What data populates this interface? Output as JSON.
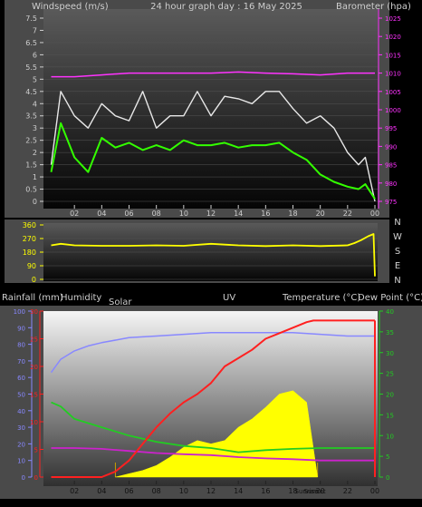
{
  "chart_data": [
    {
      "type": "line",
      "title": "24 hour graph day : 16 May 2025",
      "left_axis_label": "Windspeed (m/s)",
      "right_axis_label": "Barometer (hpa)",
      "x_ticks": [
        "02",
        "04",
        "06",
        "08",
        "10",
        "12",
        "14",
        "16",
        "18",
        "20",
        "22",
        "00"
      ],
      "left_ticks": [
        "0",
        "0.5",
        "1",
        "1.5",
        "2",
        "2.5",
        "3",
        "3.5",
        "4",
        "4.5",
        "5",
        "5.5",
        "6",
        "6.5",
        "7",
        "7.5"
      ],
      "right_ticks": [
        "975",
        "980",
        "985",
        "990",
        "995",
        "1000",
        "1005",
        "1010",
        "1015",
        "1020",
        "1025"
      ],
      "ylim_left": [
        0,
        7.5
      ],
      "ylim_right": [
        975,
        1025
      ],
      "colors": {
        "gust": "#e8e8e8",
        "wind": "#33ff00",
        "barometer": "#ff33ff"
      },
      "series": [
        {
          "key": "gust",
          "x": [
            0.3,
            1,
            2,
            3,
            4,
            5,
            6,
            7,
            8,
            9,
            10,
            11,
            12,
            13,
            14,
            15,
            16,
            17,
            18,
            19,
            20,
            21,
            22,
            22.8,
            23.3,
            24
          ],
          "y": [
            1.5,
            4.5,
            3.5,
            3.0,
            4.0,
            3.5,
            3.3,
            4.5,
            3.0,
            3.5,
            3.5,
            4.5,
            3.5,
            4.3,
            4.2,
            4.0,
            4.5,
            4.5,
            3.8,
            3.2,
            3.5,
            3.0,
            2.0,
            1.5,
            1.8,
            0.0
          ]
        },
        {
          "key": "wind",
          "x": [
            0.3,
            1,
            2,
            3,
            4,
            5,
            6,
            7,
            8,
            9,
            10,
            11,
            12,
            13,
            14,
            15,
            16,
            17,
            18,
            19,
            20,
            21,
            22,
            22.8,
            23.3,
            24
          ],
          "y": [
            1.2,
            3.2,
            1.8,
            1.2,
            2.6,
            2.2,
            2.4,
            2.1,
            2.3,
            2.1,
            2.5,
            2.3,
            2.3,
            2.4,
            2.2,
            2.3,
            2.3,
            2.4,
            2.0,
            1.7,
            1.1,
            0.8,
            0.6,
            0.5,
            0.7,
            0.1
          ]
        },
        {
          "key": "barometer",
          "x": [
            0.3,
            2,
            4,
            6,
            8,
            10,
            12,
            14,
            16,
            18,
            20,
            22,
            24
          ],
          "y": [
            1009.0,
            1009.0,
            1009.5,
            1010.0,
            1010.0,
            1010.0,
            1010.0,
            1010.3,
            1010.0,
            1009.8,
            1009.5,
            1010.0,
            1010.0
          ]
        }
      ]
    },
    {
      "type": "line",
      "left_ticks": [
        "0",
        "90",
        "180",
        "270",
        "360"
      ],
      "compass": [
        "N",
        "W",
        "S",
        "E",
        "N"
      ],
      "ylim": [
        0,
        360
      ],
      "color": "#ffff00",
      "series": [
        {
          "key": "direction",
          "x": [
            0.3,
            1,
            2,
            4,
            6,
            8,
            10,
            12,
            14,
            16,
            18,
            20,
            22,
            22.5,
            23,
            23.5,
            23.9,
            24
          ],
          "y": [
            225,
            235,
            225,
            222,
            222,
            225,
            222,
            235,
            225,
            220,
            225,
            220,
            225,
            240,
            260,
            285,
            300,
            20
          ]
        }
      ]
    },
    {
      "type": "line",
      "labels": {
        "rain": "Rainfall (mm)",
        "humidity": "Humidity",
        "solar": "Solar",
        "uv": "UV",
        "temp": "Temperature (°C)",
        "dew": "Dew Point (°C)"
      },
      "blue_ticks": [
        "0",
        "10",
        "20",
        "30",
        "40",
        "50",
        "60",
        "70",
        "80",
        "90",
        "100"
      ],
      "red_ticks": [
        "0",
        "5",
        "10",
        "15",
        "20",
        "25",
        "30"
      ],
      "green_ticks": [
        "0",
        "5",
        "10",
        "15",
        "20",
        "25",
        "30",
        "35",
        "40"
      ],
      "x_ticks": [
        "02",
        "04",
        "06",
        "08",
        "10",
        "12",
        "14",
        "16",
        "18",
        "20",
        "22",
        "00"
      ],
      "marker_labels": [
        "Sunrise",
        "Sunset"
      ],
      "ylim_humidity": [
        0,
        100
      ],
      "ylim_rain": [
        0,
        30
      ],
      "ylim_temp": [
        0,
        40
      ],
      "colors": {
        "humidity": "#8888ff",
        "rain": "#ff2020",
        "temp": "#22cc22",
        "dew": "#cc22cc",
        "solar": "#ffff00",
        "uv": "#ff8800"
      },
      "series": [
        {
          "key": "humidity",
          "x": [
            0.3,
            1,
            2,
            3,
            4,
            6,
            8,
            10,
            12,
            14,
            16,
            18,
            20,
            22,
            24
          ],
          "y": [
            63,
            71,
            76,
            79,
            81,
            84,
            85,
            86,
            87,
            87,
            87,
            87,
            86,
            85,
            85
          ]
        },
        {
          "key": "rain",
          "x": [
            0.3,
            4,
            5,
            6,
            7,
            8,
            9,
            10,
            11,
            12,
            13,
            14,
            15,
            16,
            17,
            18,
            19,
            19.5,
            20,
            24
          ],
          "y": [
            0,
            0,
            1,
            3,
            6,
            9,
            11.5,
            13.5,
            15,
            17,
            20,
            21.5,
            23,
            25,
            26,
            27,
            28,
            28.3,
            28.3,
            28.3
          ]
        },
        {
          "key": "temp",
          "x": [
            0.3,
            1,
            2,
            3,
            4,
            5,
            6,
            8,
            10,
            12,
            14,
            16,
            18,
            20,
            22,
            24
          ],
          "y": [
            18,
            17,
            14,
            13,
            12,
            11,
            10,
            8.5,
            7.5,
            7,
            6,
            6.5,
            6.8,
            7,
            7,
            7
          ]
        },
        {
          "key": "dew",
          "x": [
            0.3,
            2,
            4,
            6,
            8,
            10,
            12,
            14,
            16,
            18,
            20,
            22,
            24
          ],
          "y": [
            7,
            7,
            6.8,
            6.3,
            5.8,
            5.5,
            5.3,
            4.8,
            4.5,
            4.3,
            4,
            4,
            4
          ]
        },
        {
          "key": "solar",
          "x": [
            5,
            6,
            7,
            8,
            9,
            10,
            11,
            12,
            13,
            14,
            15,
            16,
            17,
            18,
            19,
            19.8
          ],
          "y": [
            0,
            2,
            4,
            7,
            12,
            18,
            22,
            20,
            22,
            30,
            35,
            42,
            50,
            52,
            45,
            0
          ]
        }
      ]
    }
  ]
}
